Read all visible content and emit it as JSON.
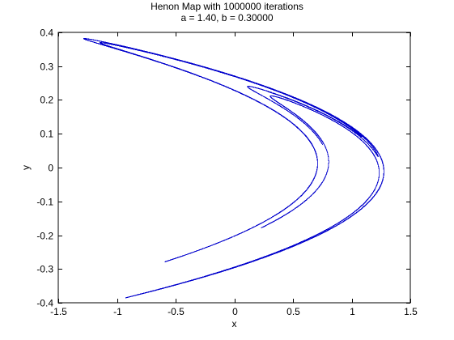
{
  "chart_data": {
    "type": "scatter",
    "title": "Henon Map with 1000000 iterations",
    "subtitle": "a = 1.40, b = 0.30000",
    "xlabel": "x",
    "ylabel": "y",
    "xlim": [
      -1.5,
      1.5
    ],
    "ylim": [
      -0.4,
      0.4
    ],
    "xticks": [
      -1.5,
      -1,
      -0.5,
      0,
      0.5,
      1,
      1.5
    ],
    "xtick_labels": [
      "-1.5",
      "-1",
      "-0.5",
      "0",
      "0.5",
      "1",
      "1.5"
    ],
    "yticks": [
      -0.4,
      -0.3,
      -0.2,
      -0.1,
      0,
      0.1,
      0.2,
      0.3,
      0.4
    ],
    "ytick_labels": [
      "-0.4",
      "-0.3",
      "-0.2",
      "-0.1",
      "0",
      "0.1",
      "0.2",
      "0.3",
      "0.4"
    ],
    "grid": false,
    "series": [
      {
        "a": 1.4,
        "b": 0.3,
        "iterations": 1000000,
        "color": "#0000cc"
      }
    ]
  }
}
